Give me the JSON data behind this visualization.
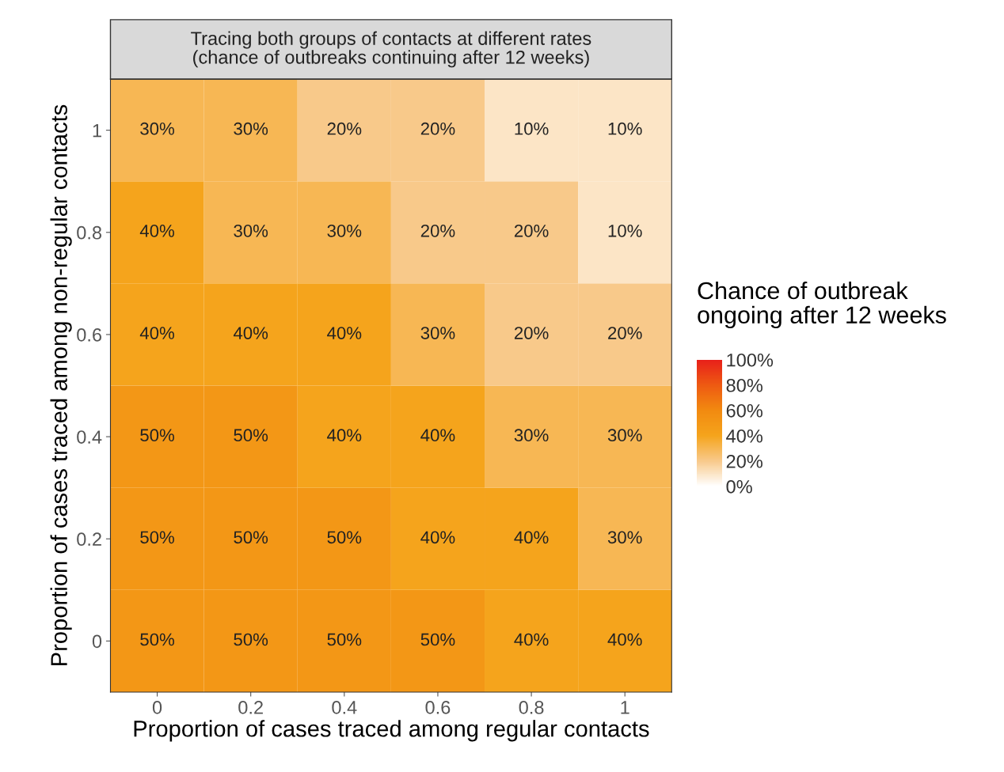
{
  "chart_data": {
    "type": "heatmap",
    "title": "Tracing both groups of contacts at different rates\n(chance of outbreaks continuing after 12 weeks)",
    "xlabel": "Proportion of cases traced among regular contacts",
    "ylabel": "Proportion of cases traced among non-regular contacts",
    "clabel": "Chance of outbreak\nongoing after 12 weeks",
    "categories": [
      "0",
      "0.2",
      "0.4",
      "0.6",
      "0.8",
      "1"
    ],
    "y_categories": [
      "1",
      "0.8",
      "0.6",
      "0.4",
      "0.2",
      "0"
    ],
    "cells": [
      [
        30,
        30,
        20,
        20,
        10,
        10
      ],
      [
        40,
        30,
        30,
        20,
        20,
        10
      ],
      [
        40,
        40,
        40,
        30,
        20,
        20
      ],
      [
        50,
        50,
        40,
        40,
        30,
        30
      ],
      [
        50,
        50,
        50,
        40,
        40,
        30
      ],
      [
        50,
        50,
        50,
        50,
        40,
        40
      ]
    ],
    "cell_labels": [
      [
        "30%",
        "30%",
        "20%",
        "20%",
        "10%",
        "10%"
      ],
      [
        "40%",
        "30%",
        "30%",
        "20%",
        "20%",
        "10%"
      ],
      [
        "40%",
        "40%",
        "40%",
        "30%",
        "20%",
        "20%"
      ],
      [
        "50%",
        "50%",
        "40%",
        "40%",
        "30%",
        "30%"
      ],
      [
        "50%",
        "50%",
        "50%",
        "40%",
        "40%",
        "30%"
      ],
      [
        "50%",
        "50%",
        "50%",
        "50%",
        "40%",
        "40%"
      ]
    ],
    "clim": [
      0,
      100
    ],
    "cticks": [
      {
        "value": 0,
        "label": "0%"
      },
      {
        "value": 20,
        "label": "20%"
      },
      {
        "value": 40,
        "label": "40%"
      },
      {
        "value": 60,
        "label": "60%"
      },
      {
        "value": 80,
        "label": "80%"
      },
      {
        "value": 100,
        "label": "100%"
      }
    ],
    "grid": false
  }
}
